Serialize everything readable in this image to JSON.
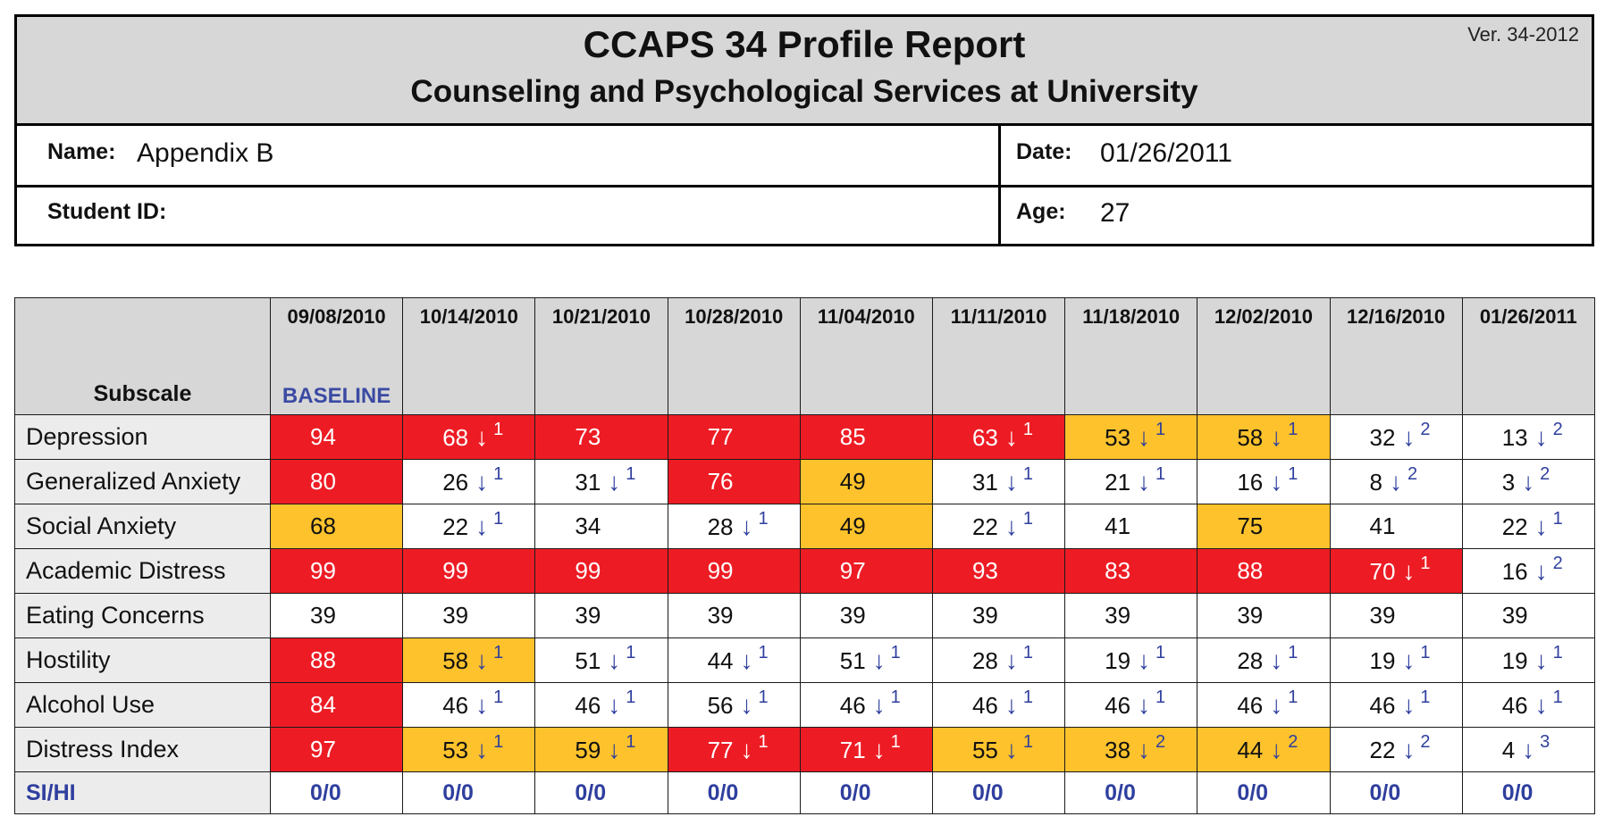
{
  "header": {
    "title": "CCAPS 34 Profile Report",
    "subtitle": "Counseling and Psychological Services at University",
    "version": "Ver. 34-2012",
    "name_label": "Name:",
    "name_value": "Appendix B",
    "date_label": "Date:",
    "date_value": "01/26/2011",
    "student_id_label": "Student ID:",
    "student_id_value": "",
    "age_label": "Age:",
    "age_value": "27"
  },
  "colors": {
    "red": "#ed1c24",
    "yellow": "#fdc22c",
    "white": "#ffffff",
    "header_gray": "#d7d7d7",
    "arrow_blue": "#2f3f9e"
  },
  "table": {
    "subscale_header": "Subscale",
    "baseline_label": "BASELINE",
    "dates": [
      "09/08/2010",
      "10/14/2010",
      "10/21/2010",
      "10/28/2010",
      "11/04/2010",
      "11/11/2010",
      "11/18/2010",
      "12/02/2010",
      "12/16/2010",
      "01/26/2011"
    ],
    "rows": [
      {
        "name": "Depression",
        "cells": [
          {
            "v": "94",
            "c": "red"
          },
          {
            "v": "68",
            "c": "red",
            "arrow": "down-arrow",
            "level": "1"
          },
          {
            "v": "73",
            "c": "red"
          },
          {
            "v": "77",
            "c": "red"
          },
          {
            "v": "85",
            "c": "red"
          },
          {
            "v": "63",
            "c": "red",
            "arrow": "down-arrow",
            "level": "1"
          },
          {
            "v": "53",
            "c": "yellow",
            "arrow": "down-arrow",
            "level": "1"
          },
          {
            "v": "58",
            "c": "yellow",
            "arrow": "down-arrow",
            "level": "1"
          },
          {
            "v": "32",
            "c": "white",
            "arrow": "down-arrow",
            "level": "2"
          },
          {
            "v": "13",
            "c": "white",
            "arrow": "down-arrow",
            "level": "2"
          }
        ]
      },
      {
        "name": "Generalized Anxiety",
        "cells": [
          {
            "v": "80",
            "c": "red"
          },
          {
            "v": "26",
            "c": "white",
            "arrow": "down-arrow",
            "level": "1"
          },
          {
            "v": "31",
            "c": "white",
            "arrow": "down-arrow",
            "level": "1"
          },
          {
            "v": "76",
            "c": "red"
          },
          {
            "v": "49",
            "c": "yellow"
          },
          {
            "v": "31",
            "c": "white",
            "arrow": "down-arrow",
            "level": "1"
          },
          {
            "v": "21",
            "c": "white",
            "arrow": "down-arrow",
            "level": "1"
          },
          {
            "v": "16",
            "c": "white",
            "arrow": "down-arrow",
            "level": "1"
          },
          {
            "v": "8",
            "c": "white",
            "arrow": "down-arrow",
            "level": "2"
          },
          {
            "v": "3",
            "c": "white",
            "arrow": "down-arrow",
            "level": "2"
          }
        ]
      },
      {
        "name": "Social Anxiety",
        "cells": [
          {
            "v": "68",
            "c": "yellow"
          },
          {
            "v": "22",
            "c": "white",
            "arrow": "down-arrow",
            "level": "1"
          },
          {
            "v": "34",
            "c": "white"
          },
          {
            "v": "28",
            "c": "white",
            "arrow": "down-arrow",
            "level": "1"
          },
          {
            "v": "49",
            "c": "yellow"
          },
          {
            "v": "22",
            "c": "white",
            "arrow": "down-arrow",
            "level": "1"
          },
          {
            "v": "41",
            "c": "white"
          },
          {
            "v": "75",
            "c": "yellow"
          },
          {
            "v": "41",
            "c": "white"
          },
          {
            "v": "22",
            "c": "white",
            "arrow": "down-arrow",
            "level": "1"
          }
        ]
      },
      {
        "name": "Academic Distress",
        "cells": [
          {
            "v": "99",
            "c": "red"
          },
          {
            "v": "99",
            "c": "red"
          },
          {
            "v": "99",
            "c": "red"
          },
          {
            "v": "99",
            "c": "red"
          },
          {
            "v": "97",
            "c": "red"
          },
          {
            "v": "93",
            "c": "red"
          },
          {
            "v": "83",
            "c": "red"
          },
          {
            "v": "88",
            "c": "red"
          },
          {
            "v": "70",
            "c": "red",
            "arrow": "down-arrow",
            "level": "1"
          },
          {
            "v": "16",
            "c": "white",
            "arrow": "down-arrow",
            "level": "2"
          }
        ]
      },
      {
        "name": "Eating Concerns",
        "cells": [
          {
            "v": "39",
            "c": "white"
          },
          {
            "v": "39",
            "c": "white"
          },
          {
            "v": "39",
            "c": "white"
          },
          {
            "v": "39",
            "c": "white"
          },
          {
            "v": "39",
            "c": "white"
          },
          {
            "v": "39",
            "c": "white"
          },
          {
            "v": "39",
            "c": "white"
          },
          {
            "v": "39",
            "c": "white"
          },
          {
            "v": "39",
            "c": "white"
          },
          {
            "v": "39",
            "c": "white"
          }
        ]
      },
      {
        "name": "Hostility",
        "cells": [
          {
            "v": "88",
            "c": "red"
          },
          {
            "v": "58",
            "c": "yellow",
            "arrow": "down-arrow",
            "level": "1"
          },
          {
            "v": "51",
            "c": "white",
            "arrow": "down-arrow",
            "level": "1"
          },
          {
            "v": "44",
            "c": "white",
            "arrow": "down-arrow",
            "level": "1"
          },
          {
            "v": "51",
            "c": "white",
            "arrow": "down-arrow",
            "level": "1"
          },
          {
            "v": "28",
            "c": "white",
            "arrow": "down-arrow",
            "level": "1"
          },
          {
            "v": "19",
            "c": "white",
            "arrow": "down-arrow",
            "level": "1"
          },
          {
            "v": "28",
            "c": "white",
            "arrow": "down-arrow",
            "level": "1"
          },
          {
            "v": "19",
            "c": "white",
            "arrow": "down-arrow",
            "level": "1"
          },
          {
            "v": "19",
            "c": "white",
            "arrow": "down-arrow",
            "level": "1"
          }
        ]
      },
      {
        "name": "Alcohol Use",
        "cells": [
          {
            "v": "84",
            "c": "red"
          },
          {
            "v": "46",
            "c": "white",
            "arrow": "down-arrow",
            "level": "1"
          },
          {
            "v": "46",
            "c": "white",
            "arrow": "down-arrow",
            "level": "1"
          },
          {
            "v": "56",
            "c": "white",
            "arrow": "down-arrow",
            "level": "1"
          },
          {
            "v": "46",
            "c": "white",
            "arrow": "down-arrow",
            "level": "1"
          },
          {
            "v": "46",
            "c": "white",
            "arrow": "down-arrow",
            "level": "1"
          },
          {
            "v": "46",
            "c": "white",
            "arrow": "down-arrow",
            "level": "1"
          },
          {
            "v": "46",
            "c": "white",
            "arrow": "down-arrow",
            "level": "1"
          },
          {
            "v": "46",
            "c": "white",
            "arrow": "down-arrow",
            "level": "1"
          },
          {
            "v": "46",
            "c": "white",
            "arrow": "down-arrow",
            "level": "1"
          }
        ]
      },
      {
        "name": "Distress Index",
        "cells": [
          {
            "v": "97",
            "c": "red"
          },
          {
            "v": "53",
            "c": "yellow",
            "arrow": "down-arrow",
            "level": "1"
          },
          {
            "v": "59",
            "c": "yellow",
            "arrow": "down-arrow",
            "level": "1"
          },
          {
            "v": "77",
            "c": "red",
            "arrow": "down-arrow",
            "level": "1"
          },
          {
            "v": "71",
            "c": "red",
            "arrow": "down-arrow",
            "level": "1"
          },
          {
            "v": "55",
            "c": "yellow",
            "arrow": "down-arrow",
            "level": "1"
          },
          {
            "v": "38",
            "c": "yellow",
            "arrow": "down-arrow",
            "level": "2"
          },
          {
            "v": "44",
            "c": "yellow",
            "arrow": "down-arrow",
            "level": "2"
          },
          {
            "v": "22",
            "c": "white",
            "arrow": "down-arrow",
            "level": "2"
          },
          {
            "v": "4",
            "c": "white",
            "arrow": "down-arrow",
            "level": "3"
          }
        ]
      },
      {
        "name": "SI/HI",
        "sihi": true,
        "cells": [
          {
            "v": "0/0",
            "c": "white"
          },
          {
            "v": "0/0",
            "c": "white"
          },
          {
            "v": "0/0",
            "c": "white"
          },
          {
            "v": "0/0",
            "c": "white"
          },
          {
            "v": "0/0",
            "c": "white"
          },
          {
            "v": "0/0",
            "c": "white"
          },
          {
            "v": "0/0",
            "c": "white"
          },
          {
            "v": "0/0",
            "c": "white"
          },
          {
            "v": "0/0",
            "c": "white"
          },
          {
            "v": "0/0",
            "c": "white"
          }
        ]
      }
    ]
  }
}
